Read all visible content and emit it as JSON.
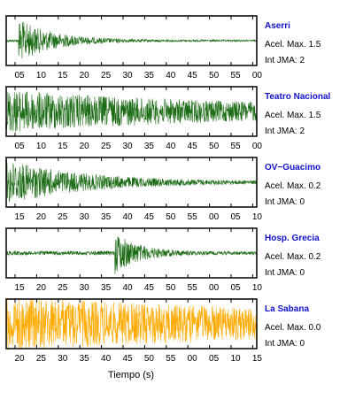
{
  "chart_data": {
    "type": "line",
    "xlabel": "Tiempo (s)",
    "colors": {
      "trace": "#1a6b14",
      "trace_last": "#ffaa00",
      "station_name": "#1111cc",
      "axis": "#000000"
    },
    "panels": [
      {
        "station": "Aserri",
        "max_label": "Acel. Max. 1.5",
        "jma_label": "Int JMA: 2",
        "ticks": [
          "05",
          "10",
          "15",
          "20",
          "25",
          "30",
          "35",
          "40",
          "45",
          "50",
          "55",
          "00"
        ],
        "waveform": {
          "onset_s": 3,
          "peak": 0.9,
          "decay": 0.12,
          "noise": 0.04
        }
      },
      {
        "station": "Teatro Nacional",
        "max_label": "Acel. Max. 1.5",
        "jma_label": "Int JMA: 2",
        "ticks": [
          "05",
          "10",
          "15",
          "20",
          "25",
          "30",
          "35",
          "40",
          "45",
          "50",
          "55",
          "00"
        ],
        "waveform": {
          "onset_s": 0,
          "peak": 0.75,
          "decay": 0.02,
          "noise": 0.2
        }
      },
      {
        "station": "OV−Guacimo",
        "max_label": "Acel. Max. 0.2",
        "jma_label": "Int JMA: 0",
        "ticks": [
          "15",
          "20",
          "25",
          "30",
          "35",
          "40",
          "45",
          "50",
          "55",
          "00",
          "05",
          "10"
        ],
        "waveform": {
          "onset_s": 0,
          "peak": 0.95,
          "decay": 0.055,
          "noise": 0.05
        }
      },
      {
        "station": "Hosp. Grecia",
        "max_label": "Acel. Max. 0.2",
        "jma_label": "Int JMA: 0",
        "ticks": [
          "15",
          "20",
          "25",
          "30",
          "35",
          "40",
          "45",
          "50",
          "55",
          "00",
          "05",
          "10"
        ],
        "waveform": {
          "onset_s": 26,
          "peak": 0.9,
          "decay": 0.18,
          "noise": 0.07
        }
      },
      {
        "station": "La Sabana",
        "max_label": "Acel. Max. 0.0",
        "jma_label": "Int JMA: 0",
        "ticks": [
          "20",
          "25",
          "30",
          "35",
          "40",
          "45",
          "50",
          "55",
          "00",
          "05",
          "10",
          "15"
        ],
        "waveform": {
          "onset_s": 0,
          "peak": 0.95,
          "decay": 0.012,
          "noise": 0.25
        }
      }
    ]
  }
}
